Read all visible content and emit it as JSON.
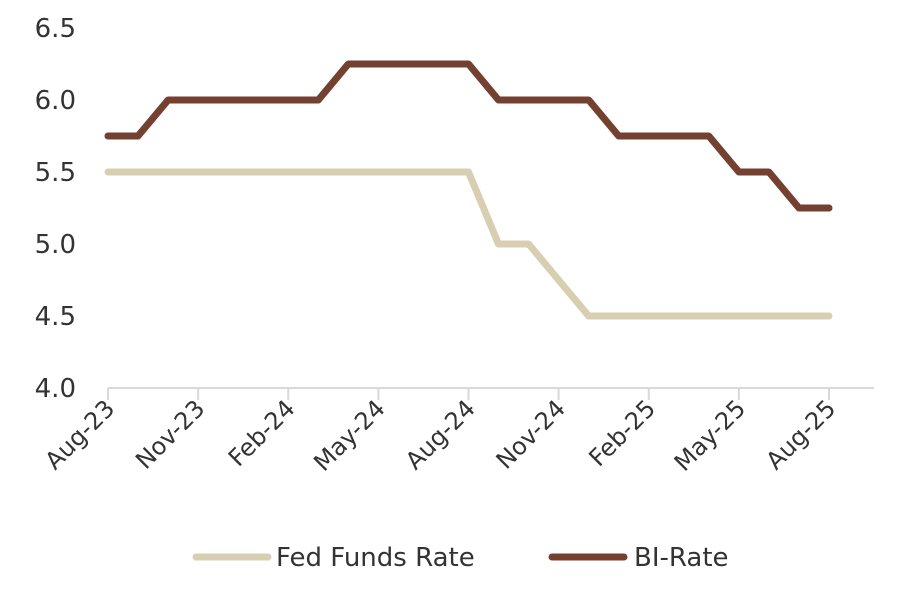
{
  "chart_data": {
    "type": "line",
    "x": [
      "Aug-23",
      "Sep-23",
      "Oct-23",
      "Nov-23",
      "Dec-23",
      "Jan-24",
      "Feb-24",
      "Mar-24",
      "Apr-24",
      "May-24",
      "Jun-24",
      "Jul-24",
      "Aug-24",
      "Sep-24",
      "Oct-24",
      "Nov-24",
      "Dec-24",
      "Jan-25",
      "Feb-25",
      "Mar-25",
      "Apr-25",
      "May-25",
      "Jun-25",
      "Jul-25",
      "Aug-25"
    ],
    "x_tick_labels": [
      "Aug-23",
      "Nov-23",
      "Feb-24",
      "May-24",
      "Aug-24",
      "Nov-24",
      "Feb-25",
      "May-25",
      "Aug-25"
    ],
    "y_tick_labels": [
      "4.0",
      "4.5",
      "5.0",
      "5.5",
      "6.0",
      "6.5"
    ],
    "ylim": [
      4.0,
      6.5
    ],
    "series": [
      {
        "name": "Fed Funds Rate",
        "color": "#d8cfb2",
        "values": [
          5.5,
          5.5,
          5.5,
          5.5,
          5.5,
          5.5,
          5.5,
          5.5,
          5.5,
          5.5,
          5.5,
          5.5,
          5.5,
          5.0,
          5.0,
          4.75,
          4.5,
          4.5,
          4.5,
          4.5,
          4.5,
          4.5,
          4.5,
          4.5,
          4.5
        ]
      },
      {
        "name": "BI-Rate",
        "color": "#744030",
        "values": [
          5.75,
          5.75,
          6.0,
          6.0,
          6.0,
          6.0,
          6.0,
          6.0,
          6.25,
          6.25,
          6.25,
          6.25,
          6.25,
          6.0,
          6.0,
          6.0,
          6.0,
          5.75,
          5.75,
          5.75,
          5.75,
          5.5,
          5.5,
          5.25,
          5.25
        ]
      }
    ],
    "legend": {
      "placement": "bottom"
    },
    "grid": false
  }
}
